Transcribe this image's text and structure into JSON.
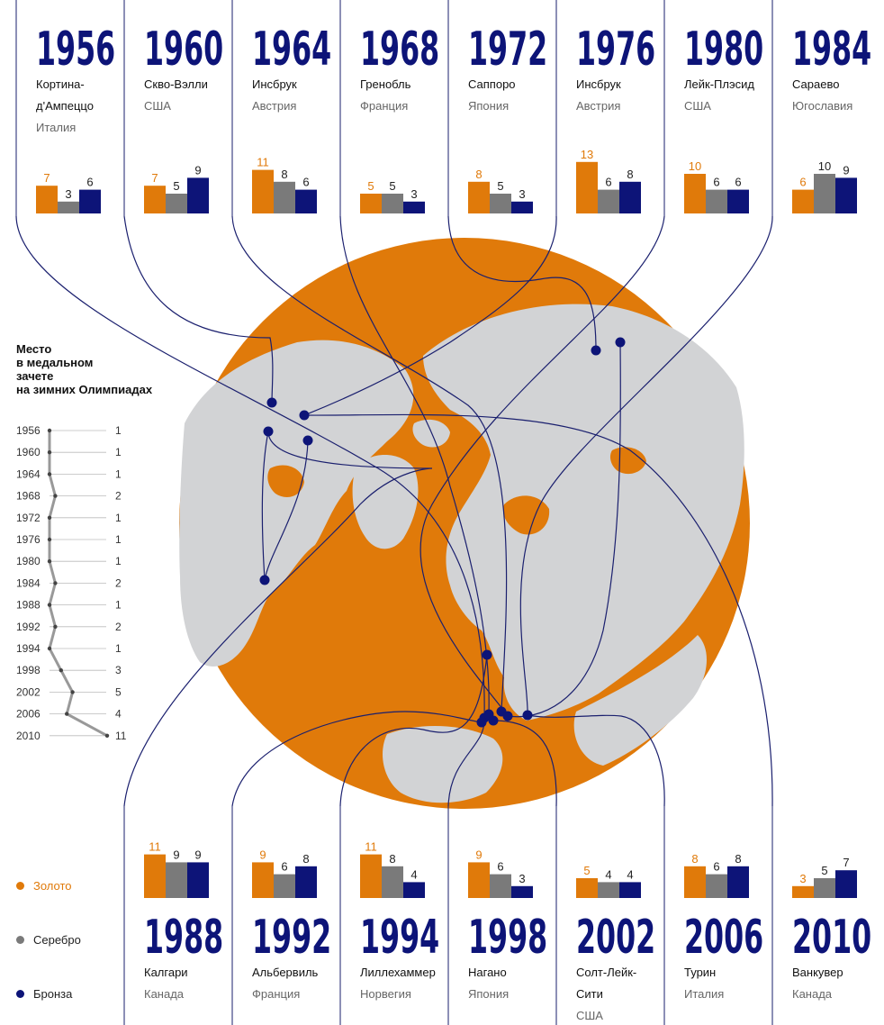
{
  "legend": {
    "title_lines": [
      "Место",
      "в медальном",
      "зачете",
      "на зимних Олимпиадах"
    ],
    "medals": [
      {
        "key": "gold",
        "label": "Золото",
        "color": "#e07a0a"
      },
      {
        "key": "silver",
        "label": "Серебро",
        "color": "#7a7a7a"
      },
      {
        "key": "bronze",
        "label": "Бронза",
        "color": "#0d1478"
      }
    ]
  },
  "colors": {
    "gold": "#e07a0a",
    "silver": "#7a7a7a",
    "bronze": "#0d1478",
    "globe_ocean": "#e07a0a",
    "globe_land": "#d2d3d5",
    "lines": "#1a1f6e"
  },
  "chart_data": [
    {
      "type": "bar",
      "series_names": [
        "Золото",
        "Серебро",
        "Бронза"
      ],
      "games": [
        {
          "year": "1956",
          "city": [
            "Кортина-",
            "д'Ампеццо"
          ],
          "country": "Италия",
          "gold": 7,
          "silver": 3,
          "bronze": 6
        },
        {
          "year": "1960",
          "city": [
            "Скво-Вэлли"
          ],
          "country": "США",
          "gold": 7,
          "silver": 5,
          "bronze": 9
        },
        {
          "year": "1964",
          "city": [
            "Инсбрук"
          ],
          "country": "Австрия",
          "gold": 11,
          "silver": 8,
          "bronze": 6
        },
        {
          "year": "1968",
          "city": [
            "Гренобль"
          ],
          "country": "Франция",
          "gold": 5,
          "silver": 5,
          "bronze": 3
        },
        {
          "year": "1972",
          "city": [
            "Саппоро"
          ],
          "country": "Япония",
          "gold": 8,
          "silver": 5,
          "bronze": 3
        },
        {
          "year": "1976",
          "city": [
            "Инсбрук"
          ],
          "country": "Австрия",
          "gold": 13,
          "silver": 6,
          "bronze": 8
        },
        {
          "year": "1980",
          "city": [
            "Лейк-Плэсид"
          ],
          "country": "США",
          "gold": 10,
          "silver": 6,
          "bronze": 6
        },
        {
          "year": "1984",
          "city": [
            "Сараево"
          ],
          "country": "Югославия",
          "gold": 6,
          "silver": 10,
          "bronze": 9
        },
        {
          "year": "1988",
          "city": [
            "Калгари"
          ],
          "country": "Канада",
          "gold": 11,
          "silver": 9,
          "bronze": 9
        },
        {
          "year": "1992",
          "city": [
            "Альбервиль"
          ],
          "country": "Франция",
          "gold": 9,
          "silver": 6,
          "bronze": 8
        },
        {
          "year": "1994",
          "city": [
            "Лиллехаммер"
          ],
          "country": "Норвегия",
          "gold": 11,
          "silver": 8,
          "bronze": 4
        },
        {
          "year": "1998",
          "city": [
            "Нагано"
          ],
          "country": "Япония",
          "gold": 9,
          "silver": 6,
          "bronze": 3
        },
        {
          "year": "2002",
          "city": [
            "Солт-Лейк-",
            "Сити"
          ],
          "country": "США",
          "gold": 5,
          "silver": 4,
          "bronze": 4
        },
        {
          "year": "2006",
          "city": [
            "Турин"
          ],
          "country": "Италия",
          "gold": 8,
          "silver": 6,
          "bronze": 8
        },
        {
          "year": "2010",
          "city": [
            "Ванкувер"
          ],
          "country": "Канада",
          "gold": 3,
          "silver": 5,
          "bronze": 7
        }
      ]
    },
    {
      "type": "line",
      "y_axis_reversed": true,
      "x": [
        "1956",
        "1960",
        "1964",
        "1968",
        "1972",
        "1976",
        "1980",
        "1984",
        "1988",
        "1992",
        "1994",
        "1998",
        "2002",
        "2006",
        "2010"
      ],
      "rank": [
        1,
        1,
        1,
        2,
        1,
        1,
        1,
        2,
        1,
        2,
        1,
        3,
        5,
        4,
        11
      ]
    }
  ]
}
